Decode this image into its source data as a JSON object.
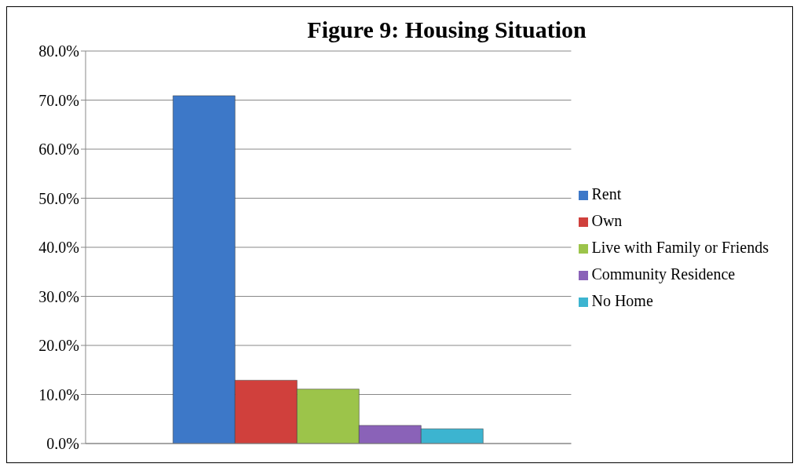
{
  "chart_data": {
    "type": "bar",
    "title": "Figure 9: Housing Situation",
    "categories": [
      null
    ],
    "series": [
      {
        "name": "Rent",
        "color": "#3d78c8",
        "values": [
          70.9
        ]
      },
      {
        "name": "Own",
        "color": "#d0403c",
        "values": [
          12.9
        ]
      },
      {
        "name": "Live with Family or Friends",
        "color": "#9cc44a",
        "values": [
          11.1
        ]
      },
      {
        "name": "Community Residence",
        "color": "#8a62b8",
        "values": [
          3.7
        ]
      },
      {
        "name": "No Home",
        "color": "#3cb4d0",
        "values": [
          3.0
        ]
      }
    ],
    "ylim": [
      0,
      80
    ],
    "yticks": [
      {
        "value": 0,
        "label": "0.0%"
      },
      {
        "value": 10,
        "label": "10.0%"
      },
      {
        "value": 20,
        "label": "20.0%"
      },
      {
        "value": 30,
        "label": "30.0%"
      },
      {
        "value": 40,
        "label": "40.0%"
      },
      {
        "value": 50,
        "label": "50.0%"
      },
      {
        "value": 60,
        "label": "60.0%"
      },
      {
        "value": 70,
        "label": "70.0%"
      },
      {
        "value": 80,
        "label": "80.0%"
      }
    ],
    "grid": "y",
    "legend": "right"
  }
}
